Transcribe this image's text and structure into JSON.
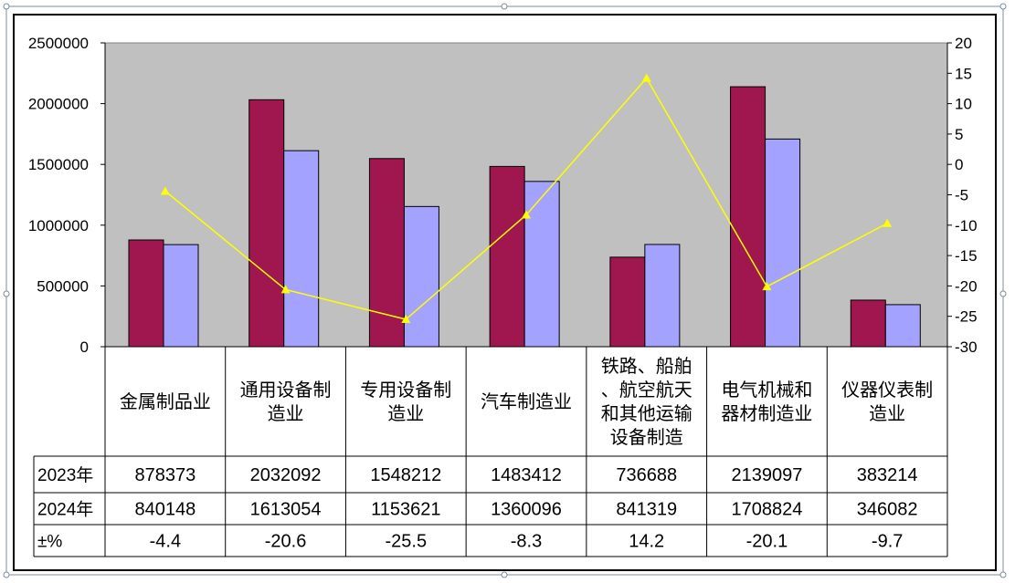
{
  "chart_data": {
    "type": "bar",
    "categories": [
      "金属制品业",
      "通用设备制造业",
      "专用设备制造业",
      "汽车制造业",
      "铁路、船舶、航空航天和其他运输设备制造",
      "电气机械和器材制造业",
      "仪器仪表制造业"
    ],
    "category_lines": [
      [
        "金属制品业"
      ],
      [
        "通用设备制",
        "造业"
      ],
      [
        "专用设备制",
        "造业"
      ],
      [
        "汽车制造业"
      ],
      [
        "铁路、船舶",
        "、航空航天",
        "和其他运输",
        "设备制造"
      ],
      [
        "电气机械和",
        "器材制造业"
      ],
      [
        "仪器仪表制",
        "造业"
      ]
    ],
    "series": [
      {
        "name": "2023年",
        "type": "bar",
        "axis": "left",
        "color": "#a0174f",
        "values": [
          878373,
          2032092,
          1548212,
          1483412,
          736688,
          2139097,
          383214
        ]
      },
      {
        "name": "2024年",
        "type": "bar",
        "axis": "left",
        "color": "#a3a3ff",
        "values": [
          840148,
          1613054,
          1153621,
          1360096,
          841319,
          1708824,
          346082
        ]
      },
      {
        "name": "±%",
        "type": "line",
        "axis": "right",
        "color": "#ffff00",
        "values": [
          -4.4,
          -20.6,
          -25.5,
          -8.3,
          14.2,
          -20.1,
          -9.7
        ]
      }
    ],
    "left_axis": {
      "ylim": [
        0,
        2500000
      ],
      "ticks": [
        "0",
        "500000",
        "1000000",
        "1500000",
        "2000000",
        "2500000"
      ]
    },
    "right_axis": {
      "ylim": [
        -30,
        20
      ],
      "ticks": [
        "-30",
        "-25",
        "-20",
        "-15",
        "-10",
        "-5",
        "0",
        "5",
        "10",
        "15",
        "20"
      ]
    },
    "plot_background": "#c0c0c0",
    "grid": false,
    "legend": "data-table"
  }
}
